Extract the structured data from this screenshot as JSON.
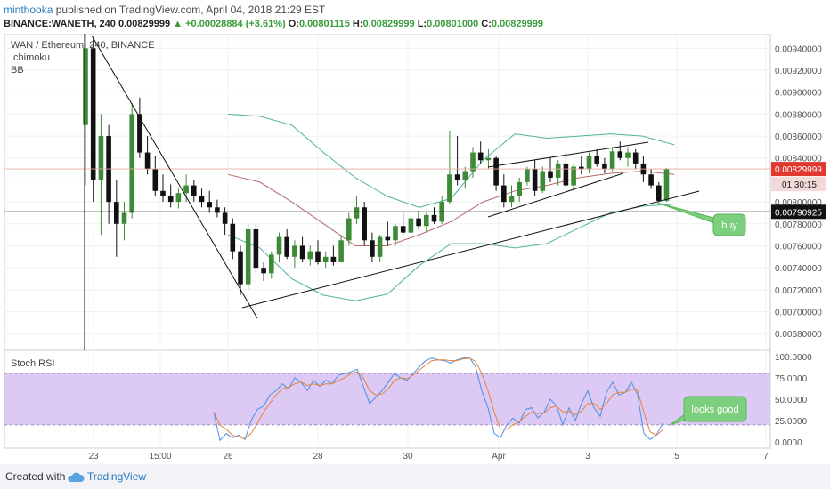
{
  "header": {
    "author": "minthooka",
    "published": "published on TradingView.com, April 04, 2018 21:29 EST",
    "symbol_line": "BINANCE:WANETH, 240",
    "last": "0.00829999",
    "change": "▲ +0.00028884 (+3.61%)",
    "o_label": "O:",
    "o": "0.00801115",
    "h_label": "H:",
    "h": "0.00829999",
    "l_label": "L:",
    "l": "0.00801000",
    "c_label": "C:",
    "c": "0.00829999"
  },
  "legend": {
    "title": "WAN / Ethereum, 240, BINANCE",
    "ind1": "Ichimoku",
    "ind2": "BB"
  },
  "rsi_title": "Stoch RSI",
  "annotations": {
    "buy": "buy",
    "looks_good": "looks good"
  },
  "price_labels": {
    "current": "0.00829999",
    "countdown": "01:30:15",
    "hline": "0.00790925"
  },
  "footer": {
    "created": "Created with",
    "brand": "TradingView"
  },
  "colors": {
    "up": "#3d8b37",
    "down": "#111111",
    "bb": "#4fb39a",
    "basis": "#b06b6b",
    "rsi_k": "#4a8fe7",
    "rsi_d": "#e8833a",
    "rsi_band": "#d6bff2",
    "label_red": "#e0382e",
    "hline": "#111111"
  },
  "chart_data": [
    {
      "type": "candlestick",
      "title": "WAN / Ethereum, 240, BINANCE",
      "ylim": [
        0.00668,
        0.0095
      ],
      "y_ticks": [
        "0.00940000",
        "0.00920000",
        "0.00900000",
        "0.00880000",
        "0.00860000",
        "0.00840000",
        "0.00820000",
        "0.00800000",
        "0.00780000",
        "0.00760000",
        "0.00740000",
        "0.00720000",
        "0.00700000",
        "0.00680000"
      ],
      "x_ticks": [
        "23",
        "15:00",
        "26",
        "28",
        "30",
        "Apr",
        "3",
        "5",
        "7"
      ],
      "horizontal_line": 0.00790925,
      "candles": [
        [
          0.0087,
          0.0096,
          0.00815,
          0.0094
        ],
        [
          0.0094,
          0.0095,
          0.008,
          0.0082
        ],
        [
          0.0082,
          0.0088,
          0.0077,
          0.0086
        ],
        [
          0.0086,
          0.0087,
          0.0078,
          0.008
        ],
        [
          0.008,
          0.0082,
          0.0075,
          0.0078
        ],
        [
          0.0078,
          0.008,
          0.00765,
          0.0079
        ],
        [
          0.0079,
          0.0089,
          0.00785,
          0.0088
        ],
        [
          0.0088,
          0.00895,
          0.0084,
          0.00845
        ],
        [
          0.00845,
          0.0086,
          0.00825,
          0.0083
        ],
        [
          0.0083,
          0.00842,
          0.00805,
          0.0081
        ],
        [
          0.0081,
          0.00825,
          0.008,
          0.00805
        ],
        [
          0.00805,
          0.00816,
          0.00795,
          0.008
        ],
        [
          0.008,
          0.00812,
          0.00794,
          0.00808
        ],
        [
          0.00808,
          0.00825,
          0.008,
          0.00815
        ],
        [
          0.00815,
          0.0082,
          0.008,
          0.00805
        ],
        [
          0.00805,
          0.00812,
          0.00795,
          0.008
        ],
        [
          0.008,
          0.0081,
          0.0079,
          0.00795
        ],
        [
          0.00795,
          0.00802,
          0.00786,
          0.0079
        ],
        [
          0.0079,
          0.00795,
          0.0077,
          0.0078
        ],
        [
          0.0078,
          0.00785,
          0.00748,
          0.00755
        ],
        [
          0.00755,
          0.0076,
          0.00715,
          0.00725
        ],
        [
          0.00725,
          0.0078,
          0.0072,
          0.00775
        ],
        [
          0.00775,
          0.0078,
          0.00735,
          0.0074
        ],
        [
          0.0074,
          0.00745,
          0.00728,
          0.00735
        ],
        [
          0.00735,
          0.00755,
          0.0073,
          0.00752
        ],
        [
          0.00752,
          0.00772,
          0.00745,
          0.00768
        ],
        [
          0.00768,
          0.00775,
          0.00748,
          0.0075
        ],
        [
          0.0075,
          0.00765,
          0.0074,
          0.0076
        ],
        [
          0.0076,
          0.00768,
          0.00745,
          0.00748
        ],
        [
          0.00748,
          0.0076,
          0.00742,
          0.00755
        ],
        [
          0.00755,
          0.00765,
          0.00743,
          0.00745
        ],
        [
          0.00745,
          0.00755,
          0.0074,
          0.0075
        ],
        [
          0.0075,
          0.0076,
          0.00742,
          0.00745
        ],
        [
          0.00745,
          0.0077,
          0.00745,
          0.00765
        ],
        [
          0.00765,
          0.0079,
          0.0076,
          0.00785
        ],
        [
          0.00785,
          0.00805,
          0.0078,
          0.00795
        ],
        [
          0.00795,
          0.008,
          0.0076,
          0.00765
        ],
        [
          0.00765,
          0.00772,
          0.00745,
          0.0075
        ],
        [
          0.0075,
          0.0077,
          0.00745,
          0.00768
        ],
        [
          0.00768,
          0.00782,
          0.0076,
          0.00765
        ],
        [
          0.00765,
          0.0078,
          0.0076,
          0.00778
        ],
        [
          0.00778,
          0.0079,
          0.0077,
          0.00772
        ],
        [
          0.00772,
          0.00788,
          0.00768,
          0.00785
        ],
        [
          0.00785,
          0.00792,
          0.00775,
          0.00778
        ],
        [
          0.00778,
          0.0079,
          0.00772,
          0.00788
        ],
        [
          0.00788,
          0.00795,
          0.0078,
          0.00782
        ],
        [
          0.00782,
          0.00805,
          0.0078,
          0.008
        ],
        [
          0.008,
          0.00865,
          0.00798,
          0.00825
        ],
        [
          0.00825,
          0.0086,
          0.00815,
          0.0082
        ],
        [
          0.0082,
          0.00832,
          0.00812,
          0.00828
        ],
        [
          0.00828,
          0.0085,
          0.00822,
          0.00845
        ],
        [
          0.00845,
          0.00855,
          0.00835,
          0.00838
        ],
        [
          0.00838,
          0.00848,
          0.0083,
          0.0084
        ],
        [
          0.0084,
          0.00842,
          0.0081,
          0.00815
        ],
        [
          0.00815,
          0.00825,
          0.00795,
          0.008
        ],
        [
          0.008,
          0.00815,
          0.00795,
          0.00805
        ],
        [
          0.00805,
          0.00822,
          0.008,
          0.00818
        ],
        [
          0.00818,
          0.00832,
          0.00815,
          0.0083
        ],
        [
          0.0083,
          0.00838,
          0.00805,
          0.0081
        ],
        [
          0.0081,
          0.00832,
          0.00808,
          0.00828
        ],
        [
          0.00828,
          0.0084,
          0.00818,
          0.00822
        ],
        [
          0.00822,
          0.00838,
          0.00815,
          0.00835
        ],
        [
          0.00835,
          0.00845,
          0.00812,
          0.00815
        ],
        [
          0.00815,
          0.00835,
          0.0081,
          0.00832
        ],
        [
          0.00832,
          0.00842,
          0.00825,
          0.0083
        ],
        [
          0.0083,
          0.00845,
          0.00826,
          0.00842
        ],
        [
          0.00842,
          0.00848,
          0.00832,
          0.00835
        ],
        [
          0.00835,
          0.0084,
          0.00826,
          0.0083
        ],
        [
          0.0083,
          0.0085,
          0.00828,
          0.00846
        ],
        [
          0.00846,
          0.00855,
          0.00838,
          0.0084
        ],
        [
          0.0084,
          0.0085,
          0.00832,
          0.00845
        ],
        [
          0.00845,
          0.00848,
          0.0083,
          0.00835
        ],
        [
          0.00835,
          0.00842,
          0.00818,
          0.00825
        ],
        [
          0.00825,
          0.0083,
          0.00812,
          0.00815
        ],
        [
          0.00815,
          0.00818,
          0.008,
          0.00801
        ],
        [
          0.00801,
          0.00831,
          0.008,
          0.0083
        ]
      ],
      "bollinger": {
        "upper": [
          0.0088,
          0.00878,
          0.0087,
          0.00845,
          0.00822,
          0.00805,
          0.00795,
          0.00803,
          0.00838,
          0.00862,
          0.00858,
          0.0086,
          0.00862,
          0.0086,
          0.00852
        ],
        "basis": [
          0.00825,
          0.00818,
          0.008,
          0.0078,
          0.0076,
          0.0076,
          0.0077,
          0.00782,
          0.008,
          0.0081,
          0.00815,
          0.00822,
          0.00826,
          0.00828,
          0.00825
        ],
        "lower": [
          0.0077,
          0.00758,
          0.0073,
          0.00715,
          0.0071,
          0.00716,
          0.00742,
          0.00762,
          0.00762,
          0.00758,
          0.00762,
          0.00776,
          0.0079,
          0.00796,
          0.00798
        ]
      }
    },
    {
      "type": "line",
      "title": "Stoch RSI",
      "ylim": [
        -5,
        105
      ],
      "y_ticks": [
        "100.0000",
        "75.0000",
        "50.0000",
        "25.0000",
        "0.0000"
      ],
      "band": [
        20,
        80
      ],
      "series": [
        {
          "values": [
            35,
            2,
            10,
            5,
            8,
            3,
            25,
            38,
            42,
            55,
            60,
            68,
            62,
            75,
            70,
            60,
            72,
            65,
            72,
            68,
            78,
            80,
            82,
            85,
            65,
            45,
            52,
            60,
            70,
            80,
            75,
            72,
            80,
            88,
            95,
            98,
            96,
            95,
            92,
            96,
            98,
            99,
            88,
            60,
            40,
            10,
            5,
            20,
            28,
            22,
            38,
            40,
            28,
            35,
            50,
            42,
            20,
            40,
            25,
            45,
            60,
            40,
            30,
            58,
            70,
            55,
            58,
            70,
            55,
            10,
            3,
            8,
            22
          ]
        },
        {
          "values": [
            35,
            20,
            15,
            8,
            6,
            4,
            10,
            22,
            35,
            45,
            55,
            62,
            64,
            68,
            70,
            66,
            68,
            66,
            68,
            68,
            72,
            75,
            80,
            82,
            75,
            60,
            55,
            56,
            62,
            72,
            75,
            74,
            78,
            84,
            90,
            95,
            96,
            96,
            95,
            95,
            97,
            98,
            94,
            80,
            60,
            35,
            15,
            15,
            20,
            24,
            30,
            35,
            33,
            34,
            40,
            42,
            35,
            36,
            32,
            36,
            45,
            45,
            38,
            45,
            55,
            58,
            58,
            62,
            60,
            35,
            12,
            8,
            14
          ]
        }
      ]
    }
  ]
}
